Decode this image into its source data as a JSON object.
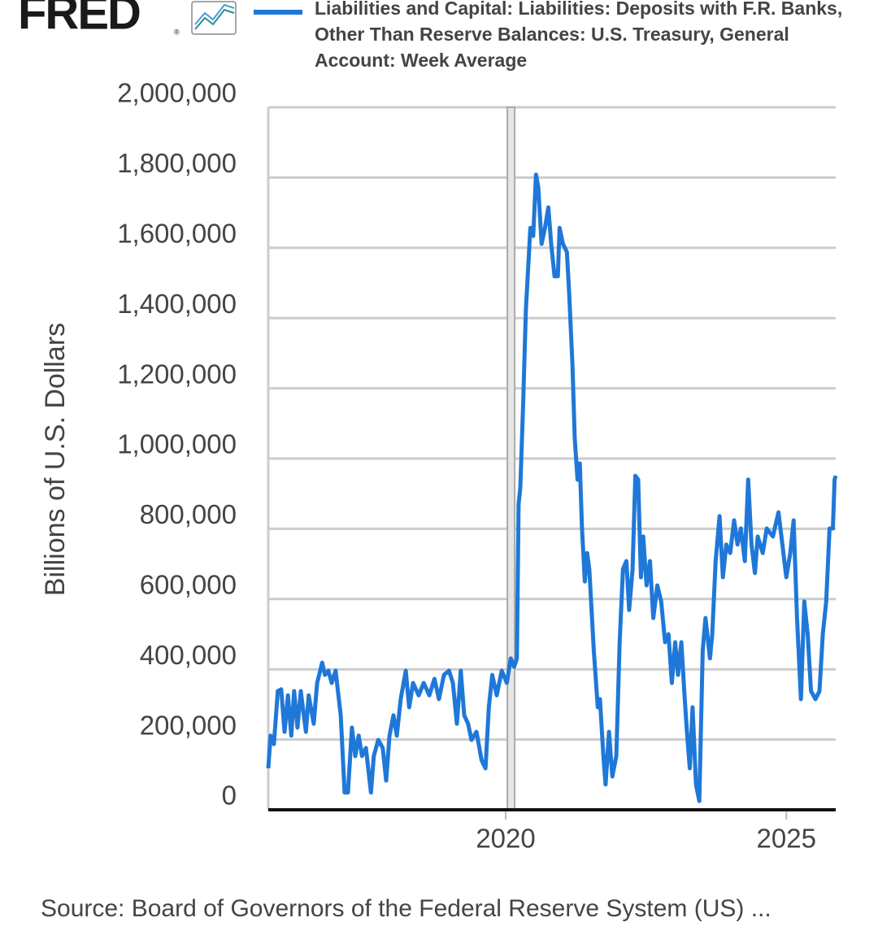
{
  "chart_data": {
    "type": "line",
    "logo": "FRED",
    "logo_mark": "®",
    "ylabel": "Billions of U.S. Dollars",
    "source": "Source: Board of Governors of the Federal Reserve System (US) ...",
    "xlim": [
      2015.77,
      2025.88
    ],
    "xticks": [
      2020,
      2025
    ],
    "ylim": [
      0,
      2000000
    ],
    "yticks": [
      0,
      {
        "value": 200000,
        "label": "200,000"
      },
      {
        "value": 400000,
        "label": "400,000"
      },
      {
        "value": 600000,
        "label": "600,000"
      },
      {
        "value": 800000,
        "label": "800,000"
      },
      {
        "value": 1000000,
        "label": "1,000,000"
      },
      {
        "value": 1200000,
        "label": "1,200,000"
      },
      {
        "value": 1400000,
        "label": "1,400,000"
      },
      {
        "value": 1600000,
        "label": "1,600,000"
      },
      {
        "value": 1800000,
        "label": "1,800,000"
      },
      {
        "value": 2000000,
        "label": "2,000,000"
      }
    ],
    "grid": true,
    "shading": [
      {
        "x0": 2020.03,
        "x1": 2020.16
      }
    ],
    "x": [
      2015.77,
      2015.81,
      2015.87,
      2015.94,
      2016.0,
      2016.06,
      2016.12,
      2016.18,
      2016.23,
      2016.29,
      2016.35,
      2016.44,
      2016.49,
      2016.58,
      2016.64,
      2016.73,
      2016.78,
      2016.84,
      2016.9,
      2016.97,
      2017.06,
      2017.13,
      2017.19,
      2017.26,
      2017.32,
      2017.38,
      2017.44,
      2017.51,
      2017.6,
      2017.65,
      2017.73,
      2017.81,
      2017.87,
      2017.93,
      2018.0,
      2018.06,
      2018.13,
      2018.22,
      2018.28,
      2018.35,
      2018.45,
      2018.54,
      2018.64,
      2018.73,
      2018.81,
      2018.9,
      2018.99,
      2019.06,
      2019.13,
      2019.2,
      2019.26,
      2019.33,
      2019.39,
      2019.48,
      2019.57,
      2019.64,
      2019.7,
      2019.76,
      2019.84,
      2019.93,
      2020.02,
      2020.09,
      2020.15,
      2020.2,
      2020.23,
      2020.26,
      2020.31,
      2020.36,
      2020.44,
      2020.49,
      2020.54,
      2020.58,
      2020.64,
      2020.7,
      2020.76,
      2020.81,
      2020.87,
      2020.93,
      2020.96,
      2021.02,
      2021.09,
      2021.13,
      2021.19,
      2021.23,
      2021.28,
      2021.32,
      2021.36,
      2021.41,
      2021.45,
      2021.49,
      2021.57,
      2021.64,
      2021.68,
      2021.74,
      2021.78,
      2021.84,
      2021.9,
      2021.97,
      2022.03,
      2022.09,
      2022.15,
      2022.2,
      2022.26,
      2022.31,
      2022.36,
      2022.41,
      2022.45,
      2022.51,
      2022.57,
      2022.63,
      2022.7,
      2022.77,
      2022.84,
      2022.9,
      2022.96,
      2023.02,
      2023.07,
      2023.13,
      2023.19,
      2023.23,
      2023.28,
      2023.33,
      2023.39,
      2023.45,
      2023.51,
      2023.56,
      2023.64,
      2023.68,
      2023.74,
      2023.81,
      2023.87,
      2023.93,
      2024.0,
      2024.07,
      2024.13,
      2024.19,
      2024.26,
      2024.32,
      2024.38,
      2024.44,
      2024.49,
      2024.58,
      2024.65,
      2024.76,
      2024.86,
      2024.93,
      2025.0,
      2025.07,
      2025.13,
      2025.19,
      2025.26,
      2025.32,
      2025.38,
      2025.44,
      2025.52,
      2025.59,
      2025.65,
      2025.71,
      2025.77,
      2025.83,
      2025.86,
      2025.88
    ],
    "series": [
      {
        "name": "Liabilities and Capital: Liabilities: Deposits with F.R. Banks, Other Than Reserve Balances: U.S. Treasury, General Account: Week Average",
        "color": "#1f78d8",
        "values": [
          118000,
          211000,
          187000,
          338000,
          343000,
          222000,
          326000,
          211000,
          338000,
          234000,
          338000,
          222000,
          326000,
          245000,
          361000,
          419000,
          384000,
          396000,
          361000,
          396000,
          269000,
          49000,
          49000,
          234000,
          153000,
          211000,
          153000,
          176000,
          49000,
          153000,
          199000,
          176000,
          83000,
          211000,
          269000,
          211000,
          315000,
          396000,
          292000,
          361000,
          326000,
          361000,
          326000,
          373000,
          315000,
          384000,
          396000,
          361000,
          245000,
          396000,
          269000,
          245000,
          199000,
          222000,
          141000,
          118000,
          292000,
          384000,
          326000,
          396000,
          361000,
          431000,
          407000,
          431000,
          870000,
          917000,
          1148000,
          1426000,
          1657000,
          1634000,
          1808000,
          1773000,
          1611000,
          1657000,
          1715000,
          1611000,
          1519000,
          1519000,
          1657000,
          1611000,
          1588000,
          1472000,
          1264000,
          1056000,
          940000,
          986000,
          801000,
          650000,
          731000,
          685000,
          454000,
          292000,
          315000,
          153000,
          72000,
          222000,
          95000,
          153000,
          477000,
          685000,
          708000,
          569000,
          685000,
          951000,
          940000,
          662000,
          778000,
          639000,
          708000,
          546000,
          639000,
          593000,
          477000,
          500000,
          361000,
          477000,
          384000,
          477000,
          315000,
          222000,
          118000,
          292000,
          72000,
          25000,
          454000,
          546000,
          431000,
          500000,
          708000,
          836000,
          662000,
          755000,
          731000,
          824000,
          755000,
          801000,
          708000,
          940000,
          755000,
          674000,
          778000,
          731000,
          801000,
          778000,
          847000,
          755000,
          662000,
          731000,
          824000,
          546000,
          315000,
          593000,
          500000,
          338000,
          315000,
          338000,
          500000,
          593000,
          801000,
          801000,
          940000,
          951000
        ]
      }
    ]
  }
}
